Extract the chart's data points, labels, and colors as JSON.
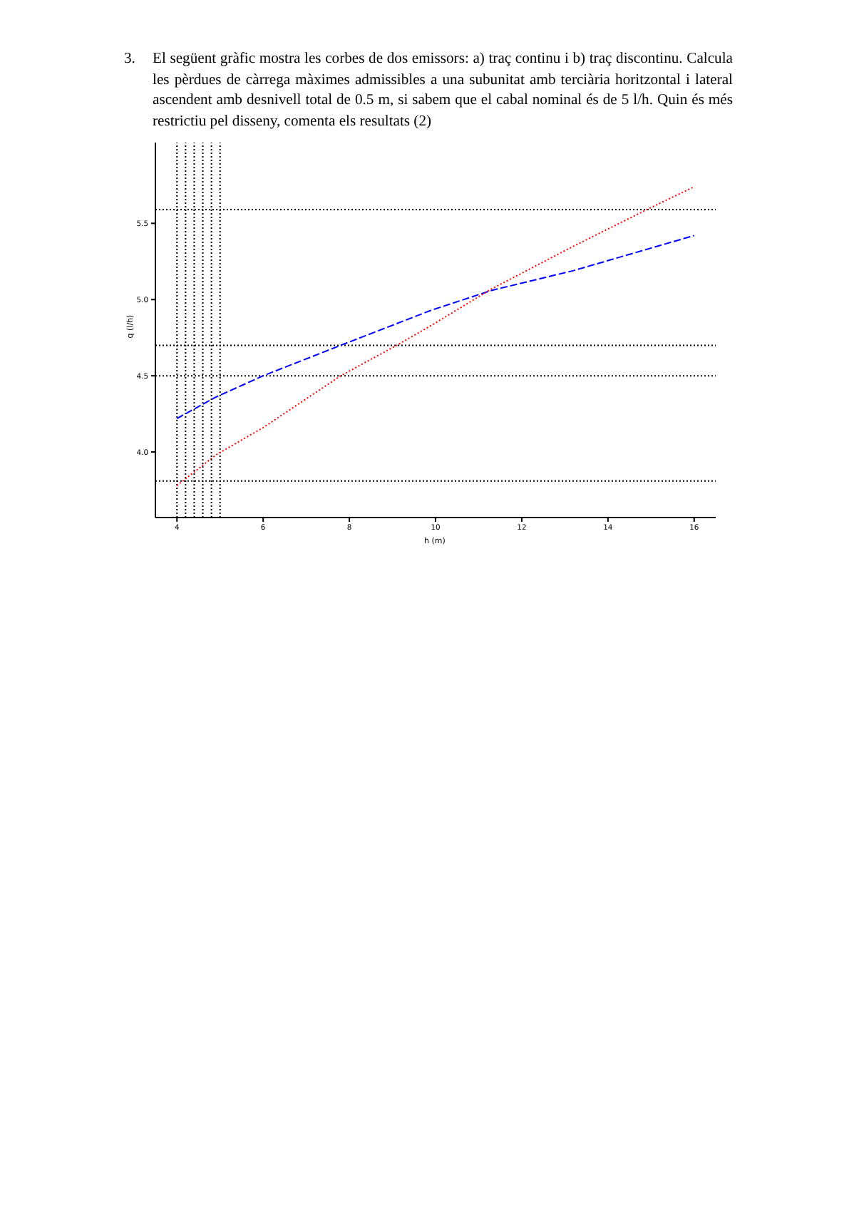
{
  "chart_data": {
    "type": "line",
    "title": "3. El següent gràfic mostra les corbes de dos emissors:  a) traç continu i b) traç discontinu. Calcula les pèrdues de càrrega màximes admissibles a una subunitat amb terciària horitzontal i lateral ascendent amb desnivell total de 0.5 m, si sabem que el cabal nominal és de 5 l/h. Quin és més restrictiu pel disseny, comenta els resultats  (2)",
    "xlabel": "h (m)",
    "ylabel": "q (l/h)",
    "xlim": [
      3.5,
      16.5
    ],
    "xticks": [
      4,
      6,
      8,
      10,
      12,
      14,
      16
    ],
    "ylim": [
      3.57,
      6.03
    ],
    "yticks": [
      {
        "value": 4,
        "label": "4.0"
      },
      4.5,
      {
        "value": 5,
        "label": "5.0"
      },
      5.5
    ],
    "series": [
      {
        "color": "#0000ff",
        "line_style": "dashed",
        "x": [
          4,
          4.9,
          6,
          7.8,
          9.9,
          11.3,
          13.2,
          16
        ],
        "values": [
          4.22,
          4.36,
          4.5,
          4.7,
          4.93,
          5.06,
          5.19,
          5.42
        ]
      },
      {
        "color": "#ff0000",
        "line_style": "dotted",
        "x": [
          4,
          4.9,
          6,
          7.8,
          9.1,
          9.9,
          11.3,
          13.2,
          14.9,
          16
        ],
        "values": [
          3.78,
          3.98,
          4.16,
          4.5,
          4.7,
          4.83,
          5.07,
          5.35,
          5.59,
          5.74
        ]
      }
    ],
    "ref_lines": [
      {
        "axis": "x",
        "value": 4,
        "color": "#000000",
        "line_style": "dotted"
      },
      {
        "axis": "x",
        "value": 4.2,
        "color": "#000000",
        "line_style": "dotted"
      },
      {
        "axis": "x",
        "value": 4.4,
        "color": "#000000",
        "line_style": "dotted"
      },
      {
        "axis": "x",
        "value": 4.6,
        "color": "#000000",
        "line_style": "dotted"
      },
      {
        "axis": "x",
        "value": 4.8,
        "color": "#000000",
        "line_style": "dotted"
      },
      {
        "axis": "x",
        "value": 5,
        "color": "#000000",
        "line_style": "dotted"
      },
      {
        "axis": "y",
        "value": 3.81,
        "color": "#000000",
        "line_style": "dotted"
      },
      {
        "axis": "y",
        "value": 4.5,
        "color": "#000000",
        "line_style": "dotted"
      },
      {
        "axis": "y",
        "value": 4.7,
        "color": "#000000",
        "line_style": "dotted"
      },
      {
        "axis": "y",
        "value": 5.59,
        "color": "#000000",
        "line_style": "dotted"
      }
    ],
    "grid": false
  }
}
